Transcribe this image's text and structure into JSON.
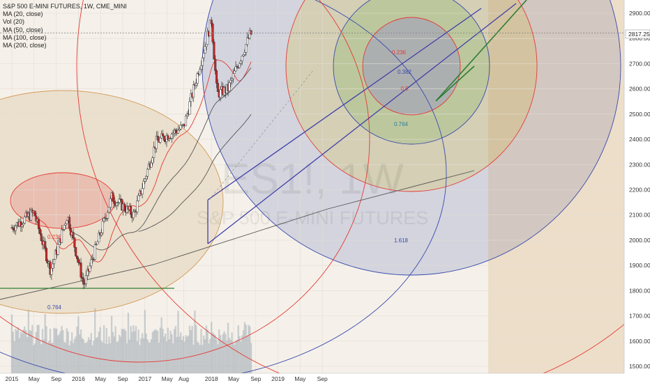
{
  "legend": {
    "title": "S&P 500 E-MINI FUTURES, 1W, CME_MINI",
    "indicators": [
      "MA (20, close)",
      "Vol (20)",
      "MA (50, close)",
      "MA (100, close)",
      "MA (200, close)"
    ]
  },
  "watermark": {
    "symbol": "ES1!, 1W",
    "name": "S&P 500 E-MINI FUTURES"
  },
  "last_price_label": "2817.25",
  "colors": {
    "bull": "#ffffff",
    "bear": "#c62828",
    "wick": "#333333",
    "channel": "#3f3fa8",
    "wedge": "#2e7d32",
    "support": "#2e7d32",
    "ma20": "#e53935",
    "ma_other": "#555555",
    "circle_red": "#e53935",
    "circle_blue": "#3949ab",
    "volume": "#9aa3b0"
  },
  "chart_data": {
    "type": "candlestick",
    "y_axis": {
      "ticks": [
        1500,
        1600,
        1700,
        1800,
        1900,
        2000,
        2100,
        2200,
        2300,
        2400,
        2500,
        2600,
        2700,
        2800,
        2900
      ],
      "min": 1475,
      "max": 2950
    },
    "x_axis": {
      "labels": [
        "2015",
        "May",
        "Sep",
        "2016",
        "May",
        "Sep",
        "2017",
        "May",
        "Aug",
        "2018",
        "May",
        "Sep",
        "2019",
        "May",
        "Sep"
      ]
    },
    "last_price": 2817.25,
    "ohlc_keypoints": [
      {
        "date": "2015-01",
        "close": 2050
      },
      {
        "date": "2015-05",
        "close": 2110
      },
      {
        "date": "2015-08",
        "close": 1880
      },
      {
        "date": "2015-11",
        "close": 2100
      },
      {
        "date": "2016-02",
        "close": 1820
      },
      {
        "date": "2016-07",
        "close": 2170
      },
      {
        "date": "2016-11",
        "close": 2100
      },
      {
        "date": "2017-03",
        "close": 2390
      },
      {
        "date": "2017-08",
        "close": 2450
      },
      {
        "date": "2018-01",
        "close": 2870
      },
      {
        "date": "2018-02",
        "close": 2580
      },
      {
        "date": "2018-04",
        "close": 2600
      },
      {
        "date": "2018-08",
        "close": 2817.25
      }
    ],
    "fib_labels": [
      "0.236",
      "0.764",
      "0.236",
      "0.382",
      "0.5",
      "0.764",
      "1.618"
    ]
  }
}
